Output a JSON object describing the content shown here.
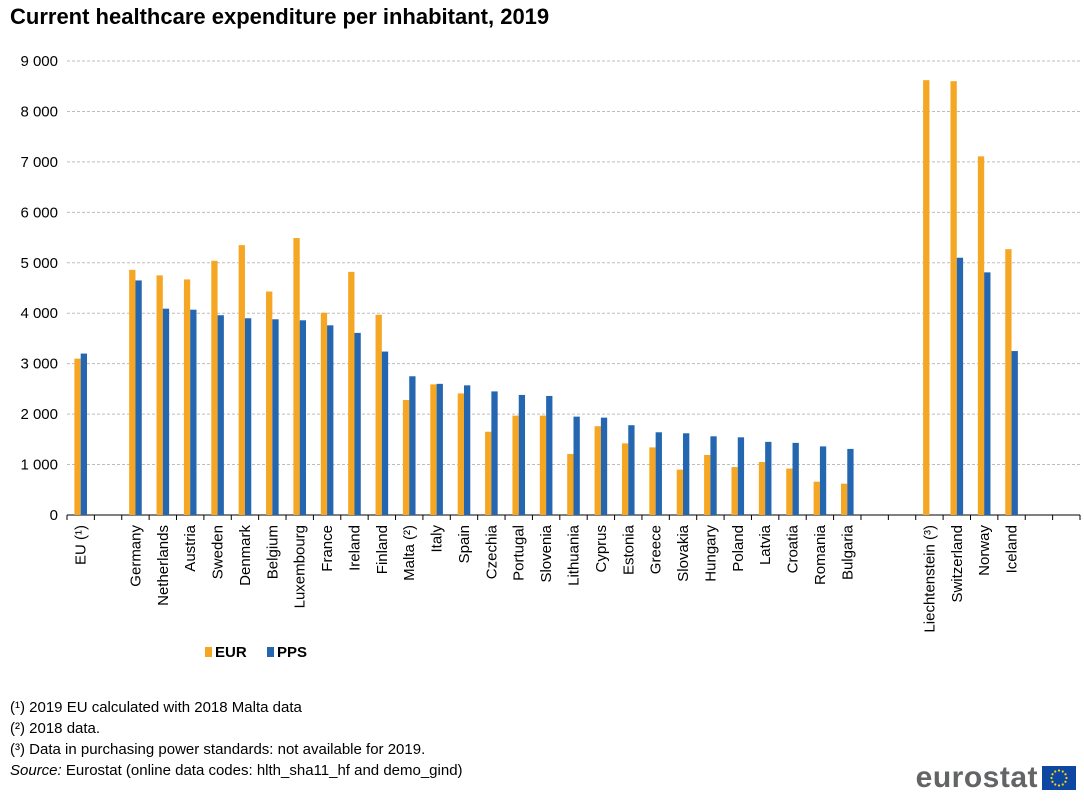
{
  "chart_data": {
    "type": "bar",
    "title": "Current healthcare expenditure per inhabitant, 2019",
    "xlabel": "",
    "ylabel": "",
    "ylim": [
      0,
      9000
    ],
    "yticks": [
      0,
      1000,
      2000,
      3000,
      4000,
      5000,
      6000,
      7000,
      8000,
      9000
    ],
    "ytick_labels": [
      "0",
      "1 000",
      "2 000",
      "3 000",
      "4 000",
      "5 000",
      "6 000",
      "7 000",
      "8 000",
      "9 000"
    ],
    "grid": true,
    "legend_position": "bottom-left",
    "categories": [
      "EU (¹)",
      "",
      "Germany",
      "Netherlands",
      "Austria",
      "Sweden",
      "Denmark",
      "Belgium",
      "Luxembourg",
      "France",
      "Ireland",
      "Finland",
      "Malta (²)",
      "Italy",
      "Spain",
      "Czechia",
      "Portugal",
      "Slovenia",
      "Lithuania",
      "Cyprus",
      "Estonia",
      "Greece",
      "Slovakia",
      "Hungary",
      "Poland",
      "Latvia",
      "Croatia",
      "Romania",
      "Bulgaria",
      "",
      "",
      "Liechtenstein (³)",
      "Switzerland",
      "Norway",
      "Iceland",
      "",
      ""
    ],
    "series": [
      {
        "name": "EUR",
        "color": "#f5a623",
        "values": [
          3100,
          null,
          4860,
          4750,
          4670,
          5040,
          5350,
          4430,
          5490,
          4010,
          4820,
          3970,
          2280,
          2590,
          2410,
          1650,
          1970,
          1970,
          1210,
          1760,
          1420,
          1340,
          900,
          1190,
          950,
          1050,
          920,
          660,
          620,
          null,
          null,
          8620,
          8600,
          7110,
          5270,
          null,
          null
        ]
      },
      {
        "name": "PPS",
        "color": "#2566b0",
        "values": [
          3200,
          null,
          4650,
          4090,
          4070,
          3960,
          3900,
          3880,
          3860,
          3760,
          3610,
          3240,
          2750,
          2600,
          2570,
          2450,
          2380,
          2360,
          1950,
          1930,
          1780,
          1640,
          1620,
          1560,
          1540,
          1450,
          1430,
          1360,
          1310,
          null,
          null,
          null,
          5100,
          4810,
          3250,
          null,
          null
        ]
      }
    ]
  },
  "footnotes": [
    "(¹) 2019 EU calculated with 2018 Malta data",
    "(²) 2018 data.",
    "(³) Data in purchasing power standards: not available for 2019."
  ],
  "source": {
    "label": "Source:",
    "text": " Eurostat (online data codes: hlth_sha11_hf  and demo_gind)"
  },
  "logo": {
    "text": "eurostat",
    "flag_color": "#0e47a1",
    "star_color": "#ffd600"
  }
}
